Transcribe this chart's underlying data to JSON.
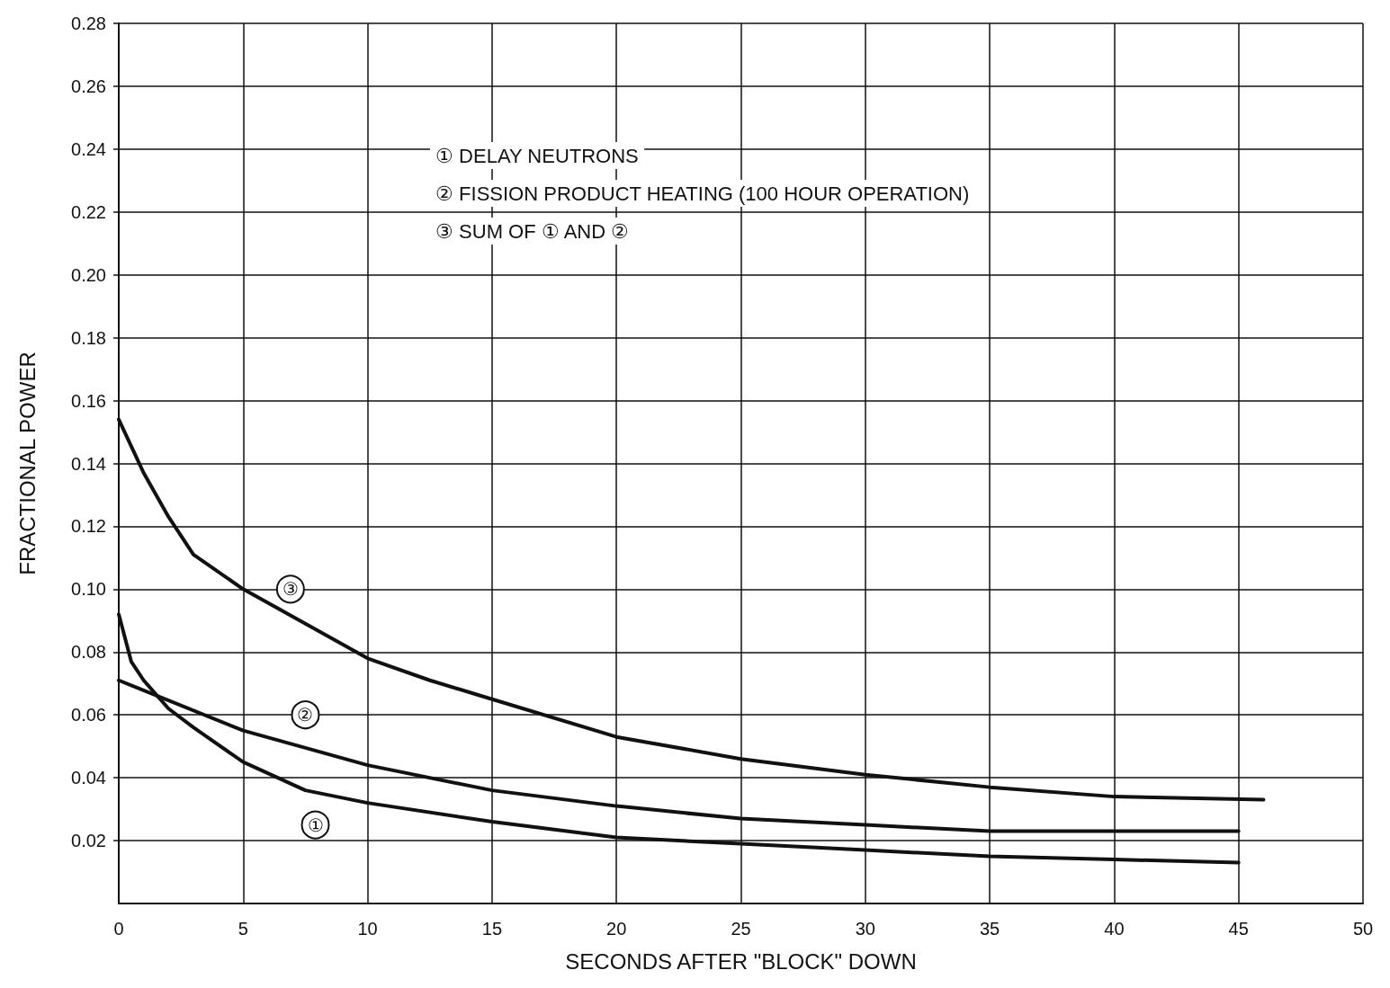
{
  "chart_data": {
    "type": "line",
    "xlabel": "SECONDS AFTER \"BLOCK\" DOWN",
    "ylabel": "FRACTIONAL POWER",
    "xlim": [
      0,
      50
    ],
    "xticks": [
      0,
      5,
      10,
      15,
      20,
      25,
      30,
      35,
      40,
      45,
      50
    ],
    "ylim": [
      0,
      0.28
    ],
    "yticks": [
      0.02,
      0.04,
      0.06,
      0.08,
      {
        "value": 0.1,
        "label": "0.10"
      },
      0.12,
      0.14,
      0.16,
      0.18,
      {
        "value": 0.2,
        "label": "0.20"
      },
      0.22,
      0.24,
      0.26,
      0.28
    ],
    "grid": true,
    "marker": "none",
    "line_style": "solid",
    "series": [
      {
        "color": "#111111",
        "x": [
          0,
          0.5,
          1,
          2,
          3,
          5,
          7.5,
          10,
          15,
          20,
          25,
          30,
          35,
          40,
          45
        ],
        "values": [
          0.092,
          0.077,
          0.071,
          0.062,
          0.056,
          0.045,
          0.036,
          0.032,
          0.026,
          0.021,
          0.019,
          0.017,
          0.015,
          0.014,
          0.013
        ]
      },
      {
        "color": "#111111",
        "x": [
          0,
          5,
          10,
          15,
          20,
          25,
          30,
          35,
          40,
          45
        ],
        "values": [
          0.071,
          0.055,
          0.044,
          0.036,
          0.031,
          0.027,
          0.025,
          0.023,
          0.023,
          0.023
        ]
      },
      {
        "color": "#111111",
        "x": [
          0,
          1,
          2,
          3,
          5,
          7.5,
          10,
          12.5,
          15,
          20,
          25,
          30,
          35,
          40,
          46
        ],
        "values": [
          0.154,
          0.137,
          0.123,
          0.111,
          0.1,
          0.089,
          0.078,
          0.071,
          0.065,
          0.053,
          0.046,
          0.041,
          0.037,
          0.034,
          0.033
        ]
      }
    ],
    "annotations": [
      "① DELAY NEUTRONS",
      "② FISSION PRODUCT HEATING (100 HOUR OPERATION)",
      "③ SUM OF ① AND ②",
      {
        "text": "③",
        "x": 6.9,
        "y": 0.1
      },
      {
        "text": "②",
        "x": 7.5,
        "y": 0.06
      },
      {
        "text": "①",
        "x": 7.9,
        "y": 0.025
      }
    ]
  }
}
